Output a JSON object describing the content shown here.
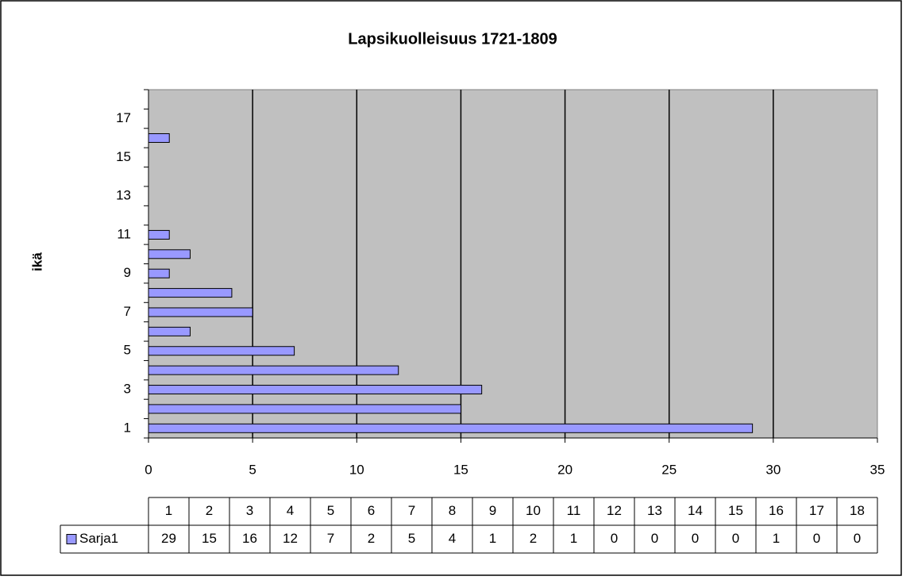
{
  "chart_data": {
    "type": "bar",
    "orientation": "horizontal",
    "title": "Lapsikuolleisuus 1721-1809",
    "y_label": "ikä",
    "categories": [
      "1",
      "2",
      "3",
      "4",
      "5",
      "6",
      "7",
      "8",
      "9",
      "10",
      "11",
      "12",
      "13",
      "14",
      "15",
      "16",
      "17",
      "18"
    ],
    "category_label_step": 2,
    "series": [
      {
        "name": "Sarja1",
        "color": "#9999ff",
        "values": [
          29,
          15,
          16,
          12,
          7,
          2,
          5,
          4,
          1,
          2,
          1,
          0,
          0,
          0,
          0,
          1,
          0,
          0
        ]
      }
    ],
    "xlim": [
      0,
      35
    ],
    "xticks": [
      0,
      5,
      10,
      15,
      20,
      25,
      30,
      35
    ],
    "grid": true,
    "plot_background": "#c0c0c0",
    "data_table": true
  }
}
